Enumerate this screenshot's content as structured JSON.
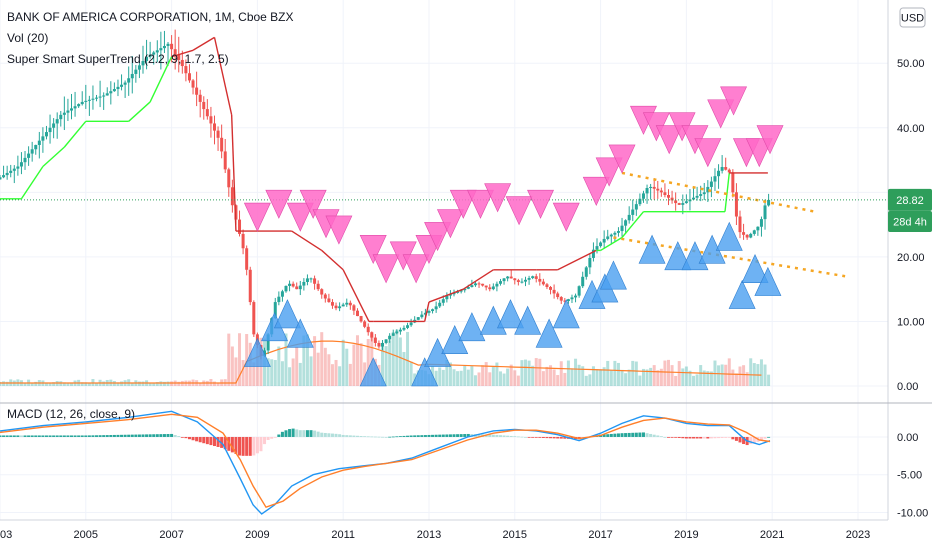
{
  "header": {
    "symbol_title": "BANK OF AMERICA CORPORATION, 1M, Cboe BZX",
    "volume_indicator": "Vol (20)",
    "supertrend_indicator": "Super Smart SuperTrend (2.2, 9, 1.7, 2.5)",
    "currency_button": "USD"
  },
  "macd_panel": {
    "label": "MACD (12, 26, close, 9)"
  },
  "price_badge": {
    "last_price": "28.82",
    "countdown": "28d 4h"
  },
  "colors": {
    "up_candle": "#26a69a",
    "down_candle": "#ef5350",
    "supertrend_up": "#33ff33",
    "supertrend_down": "#d32f2f",
    "sell_triangle": "#ff69c8",
    "buy_triangle": "#4a9ff0",
    "trendline": "#f5a623",
    "macd_line": "#2196f3",
    "signal_line": "#ff7f2a",
    "badge": "#2e9e5b"
  },
  "chart_data": [
    {
      "type": "line",
      "title": "BANK OF AMERICA CORPORATION, 1M, Cboe BZX",
      "x_ticks": [
        "03",
        "2005",
        "2007",
        "2009",
        "2011",
        "2013",
        "2015",
        "2017",
        "2019",
        "2021",
        "2023"
      ],
      "y_ticks": [
        "0.00",
        "10.00",
        "20.00",
        "30.00",
        "40.00",
        "50.00"
      ],
      "ylim": [
        0,
        57
      ],
      "xlim": [
        2003.0,
        2023.7
      ],
      "grid": true,
      "series": [
        {
          "role": "close",
          "x": [
            2003.0,
            2003.5,
            2004.0,
            2004.5,
            2005.0,
            2005.5,
            2006.0,
            2006.5,
            2007.0,
            2007.3,
            2007.6,
            2007.9,
            2008.2,
            2008.5,
            2008.8,
            2009.0,
            2009.2,
            2009.5,
            2009.8,
            2010.0,
            2010.3,
            2010.6,
            2010.9,
            2011.2,
            2011.5,
            2011.9,
            2012.2,
            2012.5,
            2012.9,
            2013.2,
            2013.5,
            2013.9,
            2014.2,
            2014.5,
            2014.9,
            2015.2,
            2015.5,
            2015.9,
            2016.2,
            2016.5,
            2016.9,
            2017.2,
            2017.5,
            2017.9,
            2018.2,
            2018.5,
            2018.9,
            2019.2,
            2019.5,
            2019.9,
            2020.1,
            2020.3,
            2020.5,
            2020.8,
            2020.95
          ],
          "values": [
            32,
            34,
            38,
            42,
            44,
            45,
            47,
            51,
            53,
            50,
            46,
            42,
            38,
            28,
            20,
            8,
            4,
            13,
            16,
            15,
            17,
            14,
            12,
            13,
            10,
            6,
            8,
            9,
            11,
            12,
            14,
            15,
            16,
            15,
            17,
            16,
            17,
            15,
            13,
            14,
            21,
            23,
            24,
            28,
            31,
            30,
            28,
            29,
            30,
            34,
            33,
            24,
            23,
            25,
            28.82
          ]
        },
        {
          "role": "supertrend",
          "x": [
            2003.0,
            2003.5,
            2004.0,
            2004.5,
            2005.0,
            2006.0,
            2006.5,
            2007.0,
            2007.5,
            2008.0,
            2008.4,
            2008.5,
            2009.0,
            2009.8,
            2010.5,
            2011.0,
            2011.6,
            2011.7,
            2012.9,
            2013.0,
            2013.8,
            2014.5,
            2015.5,
            2016.0,
            2016.9,
            2017.0,
            2017.5,
            2018.0,
            2019.0,
            2019.9,
            2020.0,
            2020.9
          ],
          "values": [
            29,
            29,
            34,
            37,
            41,
            41,
            44,
            51,
            52,
            54,
            42,
            24,
            24,
            24,
            21,
            18,
            10,
            10,
            10,
            13,
            15,
            18,
            18,
            18,
            21,
            21,
            23,
            27,
            27,
            27,
            33,
            33
          ]
        }
      ],
      "sell_signals": [
        {
          "x": 2009.0,
          "y": 24
        },
        {
          "x": 2009.5,
          "y": 26
        },
        {
          "x": 2010.0,
          "y": 24
        },
        {
          "x": 2010.3,
          "y": 26
        },
        {
          "x": 2010.6,
          "y": 23
        },
        {
          "x": 2010.9,
          "y": 22
        },
        {
          "x": 2011.7,
          "y": 19
        },
        {
          "x": 2012.0,
          "y": 16
        },
        {
          "x": 2012.4,
          "y": 18
        },
        {
          "x": 2012.7,
          "y": 16
        },
        {
          "x": 2013.0,
          "y": 19
        },
        {
          "x": 2013.2,
          "y": 21
        },
        {
          "x": 2013.5,
          "y": 23
        },
        {
          "x": 2013.8,
          "y": 26
        },
        {
          "x": 2014.2,
          "y": 26
        },
        {
          "x": 2014.6,
          "y": 27
        },
        {
          "x": 2015.1,
          "y": 25
        },
        {
          "x": 2015.6,
          "y": 26
        },
        {
          "x": 2016.2,
          "y": 24
        },
        {
          "x": 2016.9,
          "y": 28
        },
        {
          "x": 2017.2,
          "y": 31
        },
        {
          "x": 2017.5,
          "y": 33
        },
        {
          "x": 2018.0,
          "y": 39
        },
        {
          "x": 2018.3,
          "y": 38
        },
        {
          "x": 2018.6,
          "y": 36
        },
        {
          "x": 2018.9,
          "y": 38
        },
        {
          "x": 2019.2,
          "y": 36
        },
        {
          "x": 2019.5,
          "y": 34
        },
        {
          "x": 2019.8,
          "y": 40
        },
        {
          "x": 2020.1,
          "y": 42
        },
        {
          "x": 2020.4,
          "y": 34
        },
        {
          "x": 2020.7,
          "y": 34
        },
        {
          "x": 2020.95,
          "y": 36
        }
      ],
      "buy_signals": [
        {
          "x": 2009.0,
          "y": 3
        },
        {
          "x": 2009.4,
          "y": 7
        },
        {
          "x": 2009.7,
          "y": 9
        },
        {
          "x": 2010.0,
          "y": 6
        },
        {
          "x": 2011.7,
          "y": 0
        },
        {
          "x": 2012.9,
          "y": 0
        },
        {
          "x": 2013.2,
          "y": 3
        },
        {
          "x": 2013.6,
          "y": 5
        },
        {
          "x": 2014.0,
          "y": 7
        },
        {
          "x": 2014.5,
          "y": 8
        },
        {
          "x": 2014.9,
          "y": 9
        },
        {
          "x": 2015.3,
          "y": 8
        },
        {
          "x": 2015.8,
          "y": 6
        },
        {
          "x": 2016.2,
          "y": 9
        },
        {
          "x": 2016.8,
          "y": 12
        },
        {
          "x": 2017.1,
          "y": 13
        },
        {
          "x": 2017.3,
          "y": 15
        },
        {
          "x": 2018.2,
          "y": 19
        },
        {
          "x": 2018.8,
          "y": 18
        },
        {
          "x": 2019.2,
          "y": 18
        },
        {
          "x": 2019.6,
          "y": 19
        },
        {
          "x": 2020.0,
          "y": 21
        },
        {
          "x": 2020.3,
          "y": 12
        },
        {
          "x": 2020.6,
          "y": 16
        },
        {
          "x": 2020.9,
          "y": 14
        }
      ],
      "trendlines": [
        {
          "x": [
            2017.5,
            2022.0
          ],
          "values": [
            33,
            27
          ]
        },
        {
          "x": [
            2017.3,
            2022.7
          ],
          "values": [
            23,
            17
          ]
        }
      ]
    },
    {
      "type": "line",
      "title": "MACD (12, 26, close, 9)",
      "y_ticks": [
        "0.00",
        "-5.00",
        "-10.00"
      ],
      "ylim": [
        -11,
        4.5
      ],
      "series": [
        {
          "role": "macd",
          "x": [
            2003.0,
            2004.0,
            2005.0,
            2006.0,
            2007.0,
            2007.6,
            2008.2,
            2008.6,
            2008.9,
            2009.1,
            2009.4,
            2009.8,
            2010.3,
            2010.9,
            2011.5,
            2012.0,
            2012.6,
            2013.2,
            2013.9,
            2014.5,
            2015.0,
            2015.5,
            2016.0,
            2016.5,
            2017.0,
            2017.5,
            2018.0,
            2018.5,
            2019.0,
            2019.5,
            2020.0,
            2020.4,
            2020.7,
            2020.95
          ],
          "values": [
            0.8,
            1.5,
            2.0,
            2.6,
            3.4,
            2.0,
            -1.0,
            -5.5,
            -9.0,
            -10.2,
            -9.0,
            -6.5,
            -5.0,
            -4.2,
            -3.8,
            -3.5,
            -2.8,
            -1.5,
            0.0,
            0.8,
            1.0,
            0.8,
            0.3,
            -0.5,
            0.5,
            1.8,
            2.8,
            2.5,
            1.8,
            1.5,
            1.5,
            -0.5,
            -1.0,
            -0.5
          ]
        },
        {
          "role": "signal",
          "x": [
            2003.0,
            2004.0,
            2005.0,
            2006.0,
            2007.0,
            2007.6,
            2008.2,
            2008.6,
            2008.9,
            2009.2,
            2009.6,
            2010.0,
            2010.5,
            2011.0,
            2011.5,
            2012.0,
            2012.6,
            2013.2,
            2013.9,
            2014.5,
            2015.0,
            2015.5,
            2016.0,
            2016.5,
            2017.0,
            2017.5,
            2018.0,
            2018.5,
            2019.0,
            2019.5,
            2020.0,
            2020.4,
            2020.7,
            2020.95
          ],
          "values": [
            0.6,
            1.3,
            1.8,
            2.3,
            3.0,
            2.6,
            0.5,
            -3.0,
            -6.5,
            -9.3,
            -8.5,
            -6.8,
            -5.3,
            -4.4,
            -3.9,
            -3.5,
            -3.0,
            -1.8,
            -0.4,
            0.5,
            0.9,
            0.9,
            0.5,
            -0.2,
            0.2,
            1.3,
            2.2,
            2.5,
            2.0,
            1.7,
            1.6,
            0.6,
            -0.4,
            -0.6
          ]
        }
      ]
    }
  ]
}
